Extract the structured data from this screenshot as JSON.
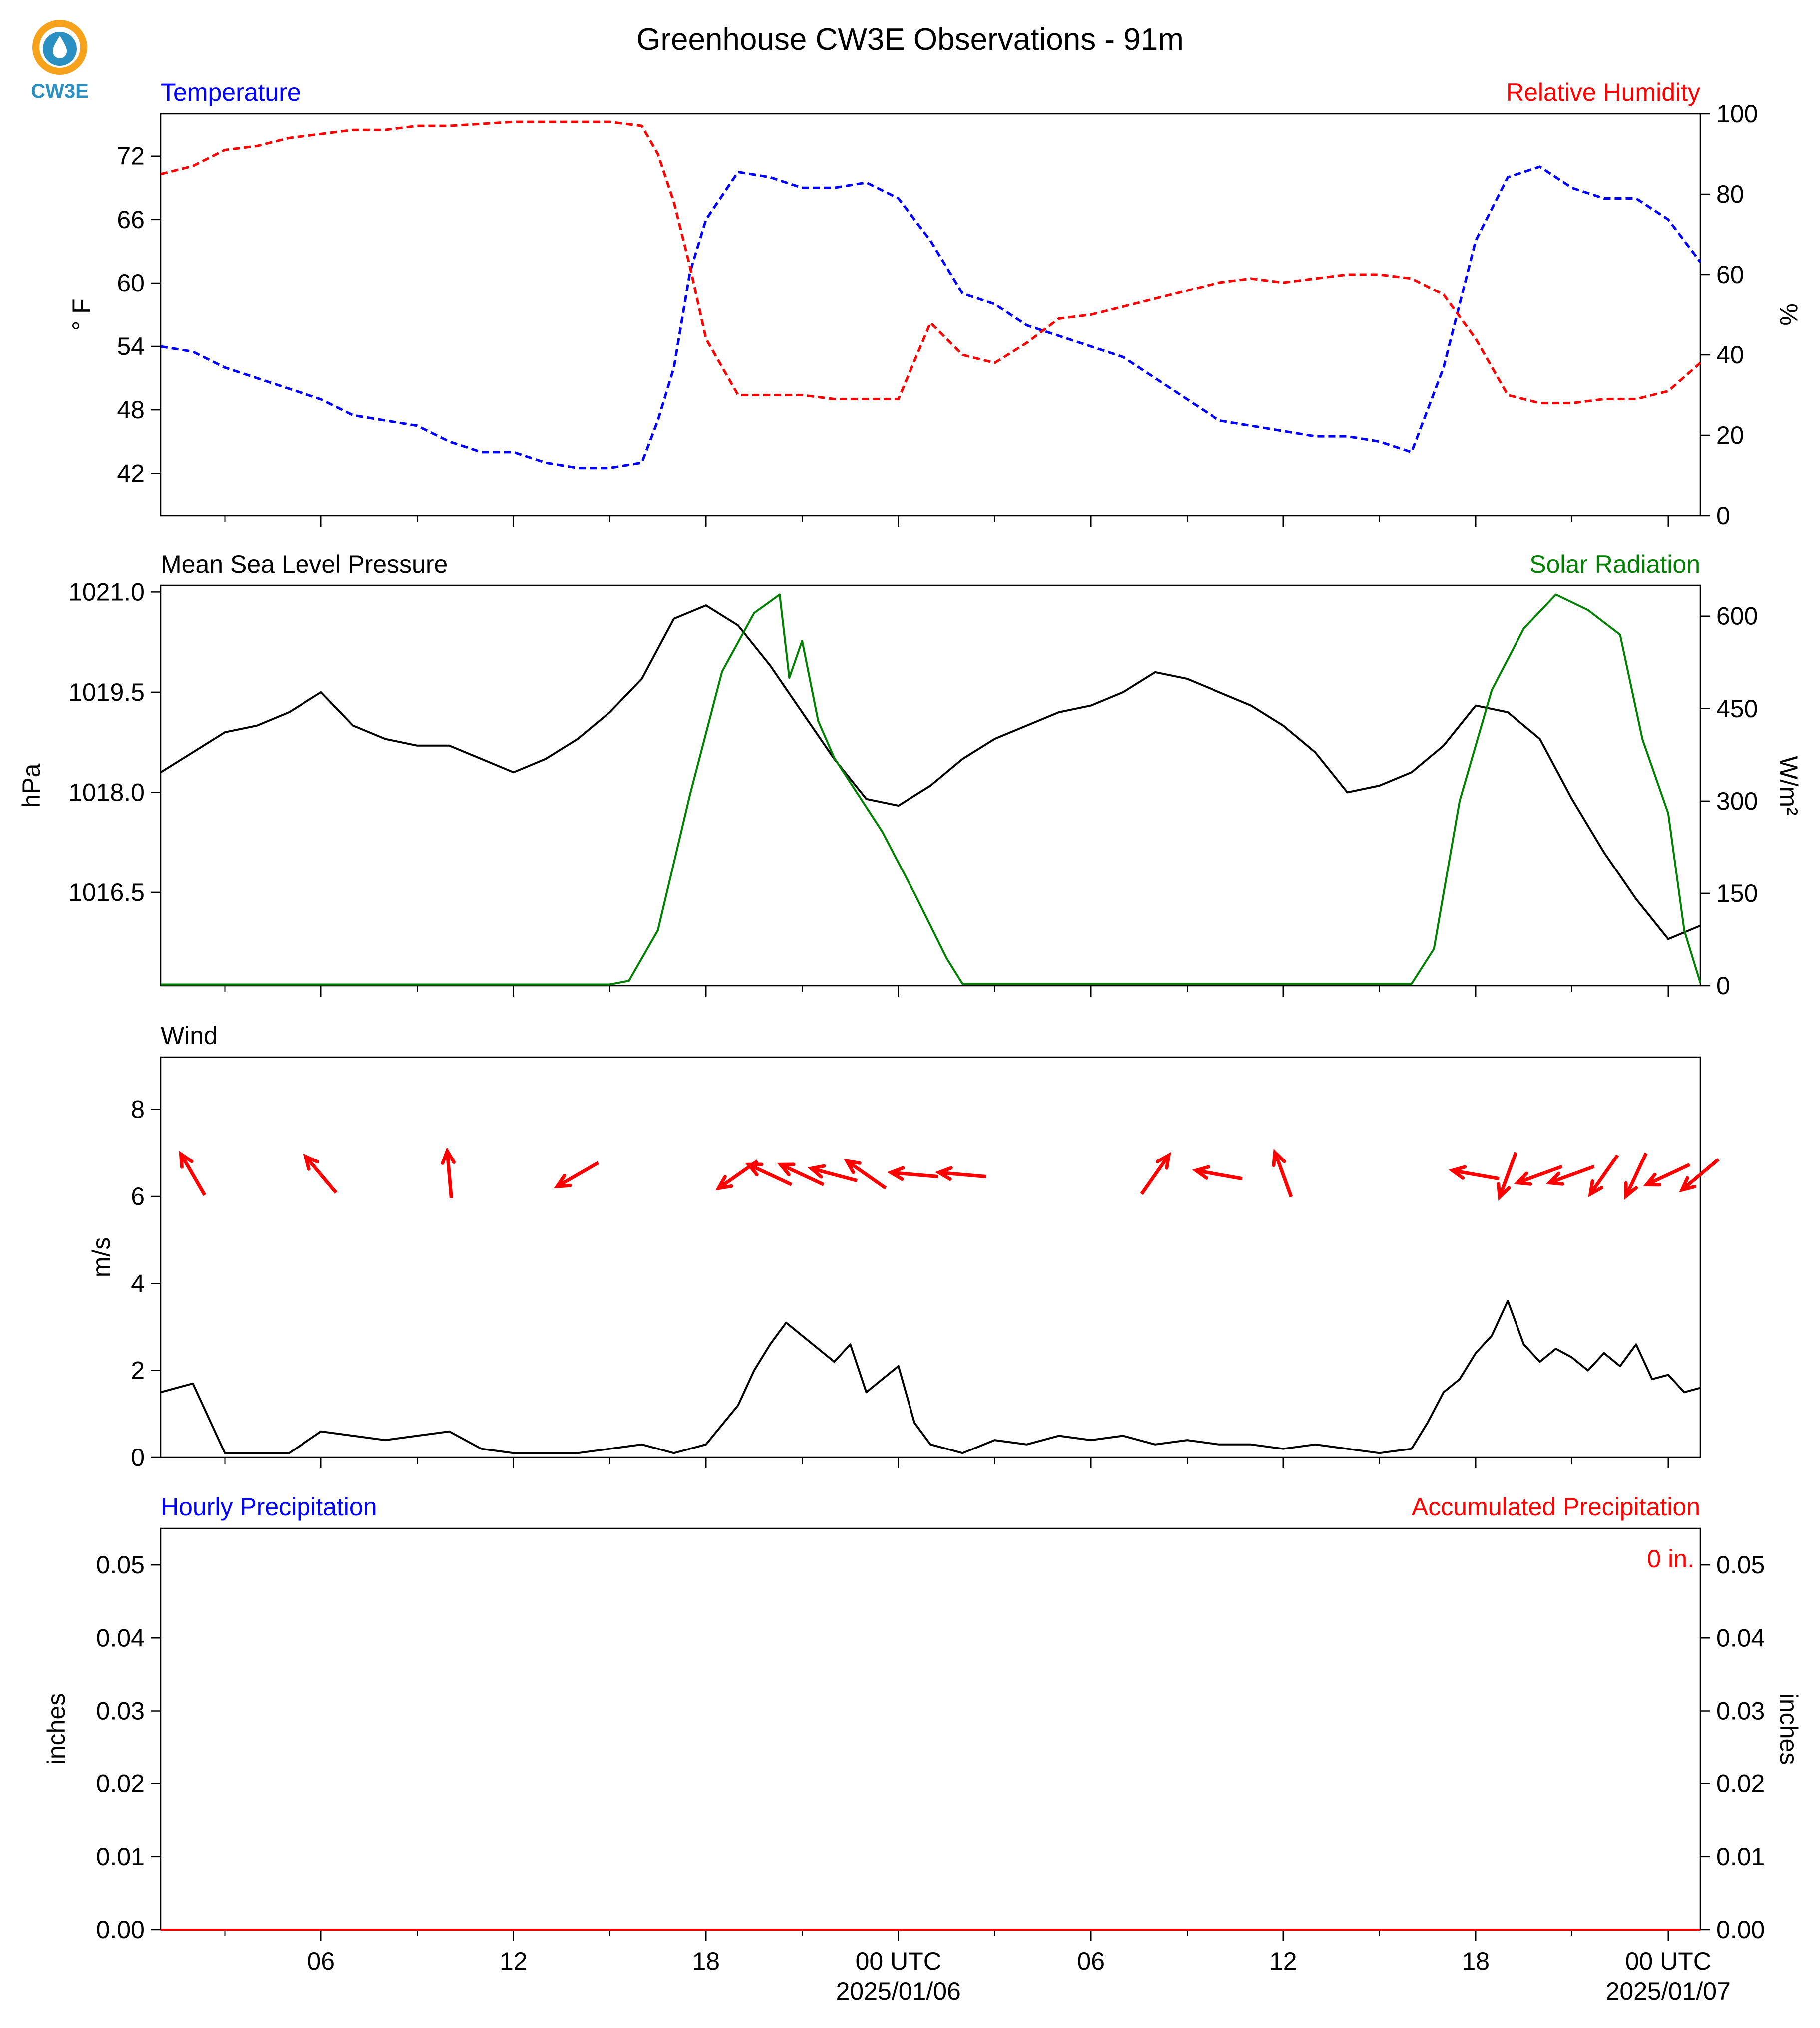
{
  "title": "Greenhouse CW3E Observations - 91m",
  "logo": {
    "text": "CW3E",
    "colors": {
      "ring": "#f7a21b",
      "drop": "#2a8fc1",
      "text": "#2a8fc1"
    }
  },
  "time_axis": {
    "tick_labels": [
      "06",
      "12",
      "18",
      "00 UTC",
      "06",
      "12",
      "18",
      "00 UTC"
    ],
    "date_labels": [
      "2025/01/06",
      "2025/01/07"
    ]
  },
  "chart_data": [
    {
      "type": "line",
      "name": "temperature-humidity",
      "left_title": "Temperature",
      "right_title": "Relative Humidity",
      "ylabel": "° F",
      "y2label": "%",
      "ylim": [
        38,
        76
      ],
      "y2lim": [
        0,
        100
      ],
      "yticks": [
        42,
        48,
        54,
        60,
        66,
        72
      ],
      "y2ticks": [
        0,
        20,
        40,
        60,
        80,
        100
      ],
      "x_unit": "hours since 2025-01-05 00 UTC",
      "xlim": [
        1,
        49
      ],
      "series": [
        {
          "name": "Temperature",
          "axis": "left",
          "color": "#0000ff",
          "x": [
            1,
            2,
            3,
            4,
            5,
            6,
            7,
            8,
            9,
            10,
            11,
            12,
            13,
            14,
            15,
            16,
            16.5,
            17,
            17.5,
            18,
            19,
            20,
            21,
            22,
            23,
            24,
            25,
            26,
            27,
            28,
            29,
            30,
            31,
            32,
            33,
            34,
            35,
            36,
            37,
            38,
            39,
            40,
            40.5,
            41,
            42,
            43,
            44,
            45,
            46,
            47,
            48,
            49
          ],
          "y": [
            54,
            53.5,
            52,
            51,
            50,
            49,
            47.5,
            47,
            46.5,
            45,
            44,
            44,
            43,
            42.5,
            42.5,
            43,
            47,
            52,
            61,
            66,
            70.5,
            70,
            69,
            69,
            69.5,
            68,
            64,
            59,
            58,
            56,
            55,
            54,
            53,
            51,
            49,
            47,
            46.5,
            46,
            45.5,
            45.5,
            45,
            44,
            48,
            52,
            64,
            70,
            71,
            69,
            68,
            68,
            66,
            62
          ]
        },
        {
          "name": "Relative Humidity",
          "axis": "right",
          "color": "#ff0000",
          "x": [
            1,
            2,
            3,
            4,
            5,
            6,
            7,
            8,
            9,
            10,
            11,
            12,
            13,
            14,
            15,
            16,
            16.5,
            17,
            17.5,
            18,
            19,
            20,
            21,
            22,
            23,
            24,
            25,
            26,
            27,
            28,
            29,
            30,
            31,
            32,
            33,
            34,
            35,
            36,
            37,
            38,
            39,
            40,
            41,
            42,
            43,
            44,
            45,
            46,
            47,
            48,
            49
          ],
          "y": [
            85,
            87,
            91,
            92,
            94,
            95,
            96,
            96,
            97,
            97,
            97.5,
            98,
            98,
            98,
            98,
            97,
            90,
            78,
            62,
            44,
            30,
            30,
            30,
            29,
            29,
            29,
            48,
            40,
            38,
            43,
            49,
            50,
            52,
            54,
            56,
            58,
            59,
            58,
            59,
            60,
            60,
            59,
            55,
            44,
            30,
            28,
            28,
            29,
            29,
            31,
            38
          ]
        }
      ]
    },
    {
      "type": "line",
      "name": "pressure-solar",
      "left_title": "Mean Sea Level Pressure",
      "right_title": "Solar Radiation",
      "ylabel": "hPa",
      "y2label": "W/m²",
      "ylim": [
        1015.1,
        1021.1
      ],
      "y2lim": [
        0,
        650
      ],
      "yticks": [
        1016.5,
        1018.0,
        1019.5,
        1021.0
      ],
      "y2ticks": [
        0,
        150,
        300,
        450,
        600
      ],
      "x_unit": "hours since 2025-01-05 00 UTC",
      "xlim": [
        1,
        49
      ],
      "series": [
        {
          "name": "Mean Sea Level Pressure",
          "axis": "left",
          "color": "#000000",
          "x": [
            1,
            2,
            3,
            4,
            5,
            6,
            7,
            8,
            9,
            10,
            11,
            12,
            13,
            14,
            15,
            16,
            17,
            18,
            19,
            20,
            21,
            22,
            23,
            24,
            25,
            26,
            27,
            28,
            29,
            30,
            31,
            32,
            33,
            34,
            35,
            36,
            37,
            38,
            39,
            40,
            41,
            42,
            43,
            44,
            45,
            46,
            47,
            48,
            49
          ],
          "y": [
            1018.3,
            1018.6,
            1018.9,
            1019.0,
            1019.2,
            1019.5,
            1019.0,
            1018.8,
            1018.7,
            1018.7,
            1018.5,
            1018.3,
            1018.5,
            1018.8,
            1019.2,
            1019.7,
            1020.6,
            1020.8,
            1020.5,
            1019.9,
            1019.2,
            1018.5,
            1017.9,
            1017.8,
            1018.1,
            1018.5,
            1018.8,
            1019.0,
            1019.2,
            1019.3,
            1019.5,
            1019.8,
            1019.7,
            1019.5,
            1019.3,
            1019.0,
            1018.6,
            1018.0,
            1018.1,
            1018.3,
            1018.7,
            1019.3,
            1019.2,
            1018.8,
            1017.9,
            1017.1,
            1016.4,
            1015.8,
            1016.0
          ]
        },
        {
          "name": "Solar Radiation",
          "axis": "right",
          "color": "#008000",
          "x": [
            1,
            15,
            15.6,
            16.5,
            17.5,
            18.5,
            19.5,
            20.3,
            20.6,
            21,
            21.5,
            22,
            22.5,
            23.5,
            24.5,
            25.5,
            26,
            40,
            40.7,
            41.5,
            42.5,
            43.5,
            44.5,
            45.5,
            46.5,
            47.2,
            48,
            48.5,
            49
          ],
          "y": [
            2,
            2,
            8,
            90,
            310,
            510,
            605,
            635,
            500,
            560,
            430,
            370,
            330,
            250,
            150,
            45,
            3,
            3,
            60,
            300,
            480,
            580,
            635,
            610,
            570,
            400,
            280,
            90,
            5
          ]
        }
      ]
    },
    {
      "type": "line",
      "name": "wind",
      "left_title": "Wind",
      "ylabel": "m/s",
      "ylim": [
        0,
        9.2
      ],
      "yticks": [
        0,
        2,
        4,
        6,
        8
      ],
      "x_unit": "hours since 2025-01-05 00 UTC",
      "xlim": [
        1,
        49
      ],
      "series": [
        {
          "name": "Wind speed",
          "axis": "left",
          "color": "#000000",
          "x": [
            1,
            2,
            3,
            4,
            5,
            6,
            7,
            8,
            9,
            10,
            11,
            12,
            13,
            14,
            15,
            16,
            17,
            18,
            19,
            19.5,
            20,
            20.5,
            21,
            21.5,
            22,
            22.5,
            23,
            23.5,
            24,
            24.5,
            25,
            26,
            27,
            28,
            29,
            30,
            31,
            32,
            33,
            34,
            35,
            36,
            37,
            38,
            39,
            40,
            40.5,
            41,
            41.5,
            42,
            42.5,
            43,
            43.5,
            44,
            44.5,
            45,
            45.5,
            46,
            46.5,
            47,
            47.5,
            48,
            48.5,
            49
          ],
          "y": [
            1.5,
            1.7,
            0.1,
            0.1,
            0.1,
            0.6,
            0.5,
            0.4,
            0.5,
            0.6,
            0.2,
            0.1,
            0.1,
            0.1,
            0.2,
            0.3,
            0.1,
            0.3,
            1.2,
            2.0,
            2.6,
            3.1,
            2.8,
            2.5,
            2.2,
            2.6,
            1.5,
            1.8,
            2.1,
            0.8,
            0.3,
            0.1,
            0.4,
            0.3,
            0.5,
            0.4,
            0.5,
            0.3,
            0.4,
            0.3,
            0.3,
            0.2,
            0.3,
            0.2,
            0.1,
            0.2,
            0.8,
            1.5,
            1.8,
            2.4,
            2.8,
            3.6,
            2.6,
            2.2,
            2.5,
            2.3,
            2.0,
            2.4,
            2.1,
            2.6,
            1.8,
            1.9,
            1.5,
            1.6
          ]
        },
        {
          "name": "Wind direction",
          "axis": "left",
          "color": "#ff0000",
          "arrows": [
            {
              "x": 2,
              "dir_deg": 330
            },
            {
              "x": 6,
              "dir_deg": 320
            },
            {
              "x": 10,
              "dir_deg": 355
            },
            {
              "x": 14,
              "dir_deg": 240
            },
            {
              "x": 19,
              "dir_deg": 235
            },
            {
              "x": 20,
              "dir_deg": 295
            },
            {
              "x": 21,
              "dir_deg": 295
            },
            {
              "x": 22,
              "dir_deg": 285
            },
            {
              "x": 23,
              "dir_deg": 305
            },
            {
              "x": 24.5,
              "dir_deg": 275
            },
            {
              "x": 26,
              "dir_deg": 275
            },
            {
              "x": 32,
              "dir_deg": 35
            },
            {
              "x": 34,
              "dir_deg": 280
            },
            {
              "x": 36,
              "dir_deg": 340
            },
            {
              "x": 42,
              "dir_deg": 280
            },
            {
              "x": 43,
              "dir_deg": 200
            },
            {
              "x": 44,
              "dir_deg": 250
            },
            {
              "x": 45,
              "dir_deg": 250
            },
            {
              "x": 46,
              "dir_deg": 215
            },
            {
              "x": 47,
              "dir_deg": 205
            },
            {
              "x": 48,
              "dir_deg": 245
            },
            {
              "x": 49,
              "dir_deg": 230
            }
          ]
        }
      ]
    },
    {
      "type": "line",
      "name": "precipitation",
      "left_title": "Hourly Precipitation",
      "right_title": "Accumulated Precipitation",
      "ylabel": "inches",
      "y2label": "inches",
      "ylim": [
        0,
        0.055
      ],
      "y2lim": [
        0,
        0.055
      ],
      "yticks": [
        0.0,
        0.01,
        0.02,
        0.03,
        0.04,
        0.05
      ],
      "y2ticks": [
        0.0,
        0.01,
        0.02,
        0.03,
        0.04,
        0.05
      ],
      "annotation": "0 in.",
      "x_unit": "hours since 2025-01-05 00 UTC",
      "xlim": [
        1,
        49
      ],
      "series": [
        {
          "name": "Hourly Precipitation",
          "axis": "left",
          "color": "#0000ff",
          "x": [
            1,
            49
          ],
          "y": [
            0,
            0
          ]
        },
        {
          "name": "Accumulated Precipitation",
          "axis": "right",
          "color": "#ff0000",
          "x": [
            1,
            49
          ],
          "y": [
            0,
            0
          ]
        }
      ]
    }
  ]
}
